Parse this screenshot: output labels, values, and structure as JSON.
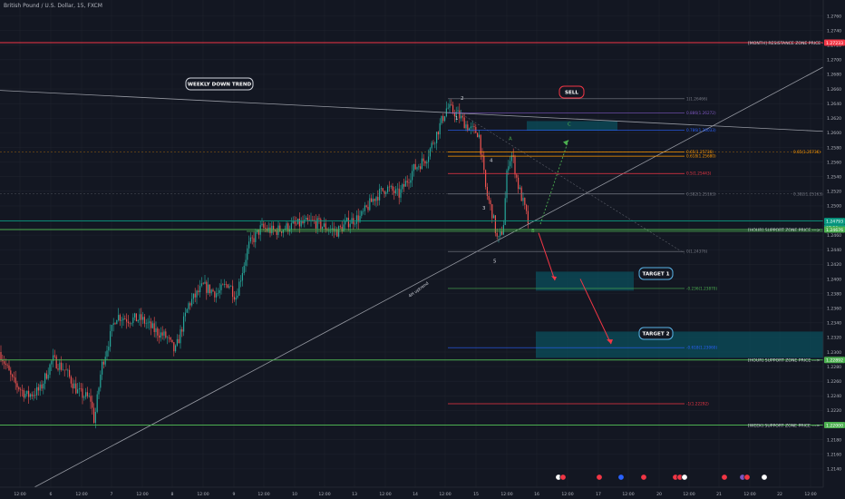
{
  "header": {
    "symbol_title": "British Pound / U.S. Dollar, 15, FXCM"
  },
  "colors": {
    "background": "#131722",
    "grid": "#1e222d",
    "axis_text": "#b2b5be",
    "candle_up": "#26a69a",
    "candle_down": "#ef5350",
    "resistance": "#f23645",
    "support": "#4caf50",
    "fib_blue": "#2962ff",
    "fib_orange": "#ff9800",
    "teal_box": "#0b4f5c",
    "trendline": "#b2b5be"
  },
  "chart_data": {
    "type": "candlestick",
    "ylim": [
      1.2115,
      1.2778
    ],
    "y_ticks": [
      1.276,
      1.274,
      1.272,
      1.27,
      1.268,
      1.266,
      1.264,
      1.262,
      1.26,
      1.258,
      1.256,
      1.254,
      1.252,
      1.25,
      1.248,
      1.246,
      1.244,
      1.242,
      1.24,
      1.238,
      1.236,
      1.234,
      1.232,
      1.23,
      1.228,
      1.226,
      1.224,
      1.222,
      1.22,
      1.218,
      1.216,
      1.214
    ],
    "x_labels": [
      "12:00",
      "6",
      "12:00",
      "7",
      "12:00",
      "8",
      "12:00",
      "9",
      "12:00",
      "10",
      "12:00",
      "13",
      "12:00",
      "14",
      "12:00",
      "15",
      "12:00",
      "16",
      "12:00",
      "17",
      "12:00",
      "20",
      "12:00",
      "21",
      "12:00",
      "22",
      "12:00"
    ],
    "price_tags": [
      {
        "price": 1.27233,
        "label": "1.27233",
        "color": "#f23645"
      },
      {
        "price": 1.24793,
        "label": "1.24793",
        "color": "#089981"
      },
      {
        "price": 1.2474,
        "label": "07:30",
        "color": "#089981"
      },
      {
        "price": 1.24676,
        "label": "1.24676",
        "color": "#4caf50"
      },
      {
        "price": 1.22892,
        "label": "1.22892",
        "color": "#4caf50"
      },
      {
        "price": 1.22,
        "label": "1.22000",
        "color": "#4caf50"
      }
    ],
    "zones": [
      {
        "price": 1.27233,
        "label": "[MONTH] RESISTANCE ZONE PRICE --->",
        "color": "#f23645"
      },
      {
        "price": 1.24676,
        "label": "[HOUR] SUPPORT ZONE PRICE --->",
        "color": "#4caf50"
      },
      {
        "price": 1.22892,
        "label": "[HOUR] SUPPORT ZONE PRICE --->",
        "color": "#4caf50"
      },
      {
        "price": 1.22,
        "label": "[WEEK] SUPPORT ZONE PRICE --->",
        "color": "#4caf50"
      }
    ],
    "fib_levels": [
      {
        "price": 1.26466,
        "label": "1(1.26466)",
        "color": "#787b86"
      },
      {
        "price": 1.26272,
        "label": "0.886(1.26272)",
        "color": "#7e57c2"
      },
      {
        "price": 1.26033,
        "label": "0.786(1.26033)",
        "color": "#2962ff"
      },
      {
        "price": 1.25736,
        "label": "0.65(1.25736)",
        "color": "#ff9800"
      },
      {
        "price": 1.2568,
        "label": "0.618(1.25680)",
        "color": "#ff9800"
      },
      {
        "price": 1.25443,
        "label": "0.5(1.25443)",
        "color": "#f23645"
      },
      {
        "price": 1.25163,
        "label": "0.382(1.25163)",
        "color": "#787b86"
      },
      {
        "price": 1.24376,
        "label": "0(1.24376)",
        "color": "#787b86"
      },
      {
        "price": 1.2387,
        "label": "-0.236(1.23870)",
        "color": "#4caf50"
      },
      {
        "price": 1.2306,
        "label": "-0.618(1.23060)",
        "color": "#2962ff"
      },
      {
        "price": 1.22292,
        "label": "-1(1.22292)",
        "color": "#f23645"
      }
    ],
    "side_fibs": [
      {
        "price": 1.25736,
        "label": "0.65(1.25736)",
        "color": "#ff9800"
      },
      {
        "price": 1.25163,
        "label": "0.382(1.25163)",
        "color": "#787b86"
      }
    ],
    "wave_labels": [
      "1",
      "2",
      "3",
      "4",
      "5",
      "A",
      "B",
      "C"
    ],
    "annotations": {
      "weekly_trend": "WEEKLY DOWN TREND",
      "uptrend": "4H uptrend",
      "sell": "SELL",
      "target1": "TARGET 1",
      "target2": "TARGET 2"
    }
  }
}
